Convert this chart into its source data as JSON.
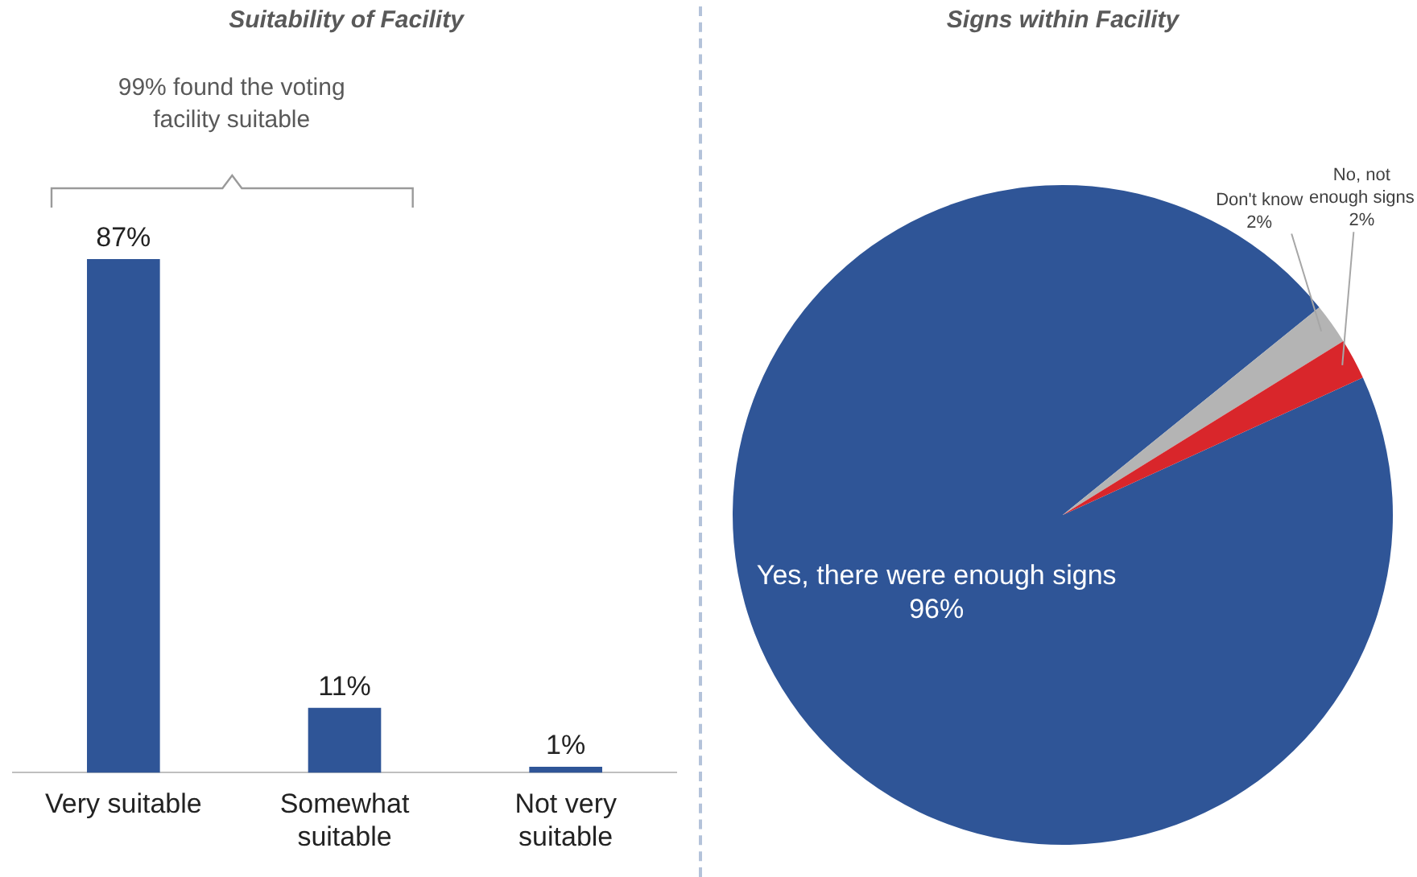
{
  "chart_data": [
    {
      "type": "bar",
      "title": "Suitability of Facility",
      "categories": [
        "Very suitable",
        "Somewhat suitable",
        "Not very suitable"
      ],
      "values": [
        87,
        11,
        1
      ],
      "value_labels": [
        "87%",
        "11%",
        "1%"
      ],
      "color": "#2f5597",
      "annotations": [
        "99% found the voting facility suitable"
      ],
      "grid": false,
      "legend": false
    },
    {
      "type": "pie",
      "title": "Signs within Facility",
      "categories": [
        "Yes, there were enough signs",
        "Don't know",
        "No, not enough signs"
      ],
      "values": [
        96,
        2,
        2
      ],
      "value_labels": [
        "96%",
        "2%",
        "2%"
      ],
      "colors": [
        "#2f5597",
        "#b4b4b4",
        "#d9262b"
      ],
      "legend": false
    }
  ]
}
